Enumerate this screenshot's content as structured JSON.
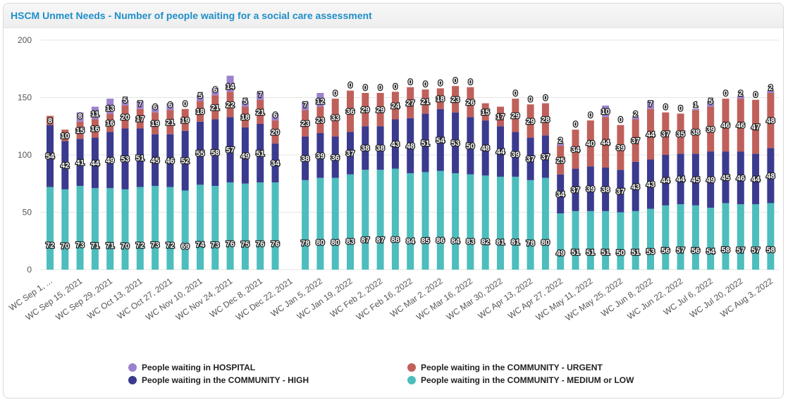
{
  "chart_data": {
    "type": "bar",
    "stacked": true,
    "title": "HSCM Unmet Needs - Number of people waiting for a social care assessment",
    "ylim": [
      0,
      200
    ],
    "yticks": [
      0,
      50,
      100,
      150,
      200
    ],
    "grid": true,
    "legend_position": "bottom",
    "x_labels": [
      "WC Sep 1, ...",
      "WC Sep 15, 2021",
      "WC Sep 29, 2021",
      "WC Oct 13, 2021",
      "WC Oct 27, 2021",
      "WC Nov 10, 2021",
      "WC Nov 24, 2021",
      "WC Dec 8, 2021",
      "WC Dec 22, 2021",
      "WC Jan 5, 2022",
      "WC Jan 19, 2022",
      "WC Feb 2, 2022",
      "WC Feb 16, 2022",
      "WC Mar 2, 2022",
      "WC Mar 16, 2022",
      "WC Mar 30, 2022",
      "WC Apr 13, 2022",
      "WC Apr 27, 2022",
      "WC May 11, 2022",
      "WC May 25, 2022",
      "WC Jun 8, 2022",
      "WC Jun 22, 2022",
      "WC Jul 6, 2022",
      "WC Jul 20, 2022",
      "WC Aug 3, 2022"
    ],
    "series": [
      {
        "name": "People waiting in the COMMUNITY - MEDIUM or LOW",
        "color": "#4dbdbd",
        "values": [
          72,
          70,
          73,
          71,
          71,
          70,
          72,
          73,
          72,
          69,
          74,
          73,
          76,
          75,
          76,
          76,
          null,
          78,
          80,
          80,
          83,
          87,
          87,
          88,
          84,
          85,
          86,
          84,
          83,
          82,
          81,
          81,
          78,
          80,
          49,
          51,
          51,
          51,
          50,
          51,
          53,
          56,
          57,
          56,
          54,
          58,
          57,
          57,
          58
        ]
      },
      {
        "name": "People waiting in the COMMUNITY - HIGH",
        "color": "#3a3a8f",
        "values": [
          54,
          42,
          41,
          44,
          49,
          53,
          51,
          45,
          46,
          52,
          55,
          58,
          57,
          49,
          51,
          34,
          null,
          38,
          39,
          36,
          37,
          38,
          38,
          43,
          48,
          51,
          54,
          53,
          50,
          48,
          44,
          39,
          37,
          37,
          34,
          37,
          39,
          38,
          37,
          43,
          43,
          44,
          44,
          45,
          49,
          45,
          46,
          44,
          48
        ]
      },
      {
        "name": "People waiting in the COMMUNITY - URGENT",
        "color": "#c0605a",
        "values": [
          8,
          10,
          15,
          16,
          16,
          20,
          17,
          19,
          21,
          19,
          18,
          21,
          22,
          18,
          21,
          20,
          null,
          23,
          23,
          33,
          36,
          29,
          29,
          24,
          27,
          21,
          18,
          23,
          26,
          15,
          17,
          29,
          29,
          28,
          25,
          34,
          40,
          44,
          39,
          37,
          44,
          37,
          35,
          38,
          39,
          46,
          46,
          47,
          48
        ]
      },
      {
        "name": "People waiting in HOSPITAL",
        "color": "#9b82cc",
        "values": [
          0,
          0,
          8,
          11,
          13,
          5,
          7,
          6,
          6,
          0,
          5,
          6,
          14,
          5,
          7,
          6,
          null,
          7,
          12,
          0,
          0,
          0,
          0,
          0,
          0,
          0,
          0,
          0,
          0,
          0,
          0,
          0,
          0,
          0,
          2,
          0,
          0,
          10,
          0,
          2,
          7,
          0,
          0,
          1,
          5,
          0,
          2,
          0,
          2
        ]
      }
    ],
    "label_flags": [
      [
        1,
        1,
        1,
        1,
        1,
        1,
        1,
        1,
        1,
        1,
        1,
        1,
        1,
        1,
        1,
        1,
        0,
        1,
        1,
        1,
        1,
        1,
        1,
        1,
        1,
        1,
        1,
        1,
        1,
        1,
        1,
        1,
        1,
        1,
        1,
        1,
        1,
        1,
        1,
        1,
        1,
        1,
        1,
        1,
        1,
        1,
        1,
        1,
        1
      ],
      [
        1,
        1,
        1,
        1,
        1,
        1,
        1,
        1,
        1,
        1,
        1,
        1,
        1,
        1,
        1,
        1,
        0,
        1,
        1,
        1,
        1,
        1,
        1,
        1,
        1,
        1,
        1,
        1,
        1,
        1,
        1,
        1,
        1,
        1,
        1,
        1,
        1,
        1,
        1,
        1,
        1,
        1,
        1,
        1,
        1,
        1,
        1,
        1,
        1
      ],
      [
        1,
        1,
        1,
        1,
        1,
        1,
        1,
        1,
        1,
        1,
        1,
        1,
        1,
        1,
        1,
        1,
        0,
        1,
        1,
        1,
        1,
        1,
        1,
        1,
        1,
        1,
        1,
        1,
        1,
        1,
        1,
        1,
        1,
        1,
        1,
        1,
        1,
        1,
        1,
        1,
        1,
        1,
        1,
        1,
        1,
        1,
        1,
        1,
        1
      ],
      [
        0,
        0,
        1,
        1,
        1,
        1,
        1,
        1,
        1,
        1,
        1,
        1,
        1,
        1,
        1,
        1,
        0,
        1,
        1,
        1,
        1,
        1,
        1,
        1,
        1,
        1,
        1,
        1,
        1,
        0,
        0,
        1,
        1,
        1,
        1,
        1,
        1,
        1,
        1,
        1,
        1,
        1,
        1,
        1,
        1,
        1,
        1,
        1,
        1
      ]
    ]
  },
  "legend": [
    {
      "label": "People waiting in HOSPITAL",
      "color": "#9b82cc"
    },
    {
      "label": "People waiting in the COMMUNITY - URGENT",
      "color": "#c0605a"
    },
    {
      "label": "People waiting in the COMMUNITY - HIGH",
      "color": "#3a3a8f"
    },
    {
      "label": "People waiting in the COMMUNITY - MEDIUM or LOW",
      "color": "#4dbdbd"
    }
  ]
}
